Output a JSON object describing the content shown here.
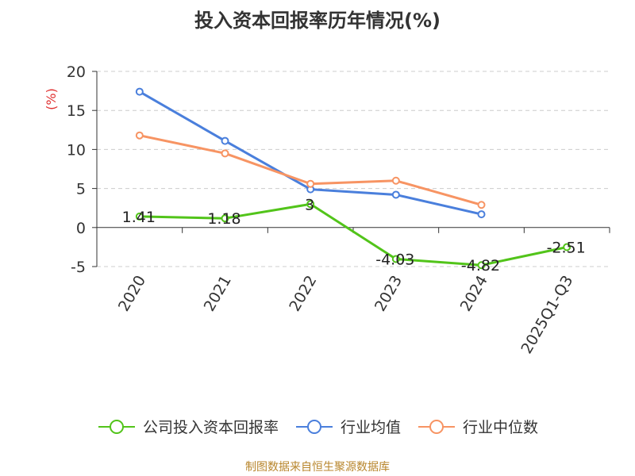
{
  "chart_data": {
    "type": "line",
    "title": "投入资本回报率历年情况(%)",
    "ylabel": "(%)",
    "categories": [
      "2020",
      "2021",
      "2022",
      "2023",
      "2024",
      "2025Q1-Q3"
    ],
    "ylim": [
      -5,
      20
    ],
    "yticks": [
      -5,
      0,
      5,
      10,
      15,
      20
    ],
    "grid": true,
    "legend_position": "bottom",
    "series": [
      {
        "name": "公司投入资本回报率",
        "color": "#52c41a",
        "values": [
          1.41,
          1.18,
          3,
          -4.03,
          -4.82,
          -2.51
        ],
        "labels": [
          "1.41",
          "1.18",
          "3",
          "-4.03",
          "-4.82",
          "-2.51"
        ]
      },
      {
        "name": "行业均值",
        "color": "#4a7fdc",
        "values": [
          17.4,
          11.1,
          4.9,
          4.2,
          1.7,
          null
        ]
      },
      {
        "name": "行业中位数",
        "color": "#f79463",
        "values": [
          11.8,
          9.5,
          5.6,
          6.0,
          2.9,
          null
        ]
      }
    ]
  },
  "footer": {
    "source": "制图数据来自恒生聚源数据库"
  }
}
